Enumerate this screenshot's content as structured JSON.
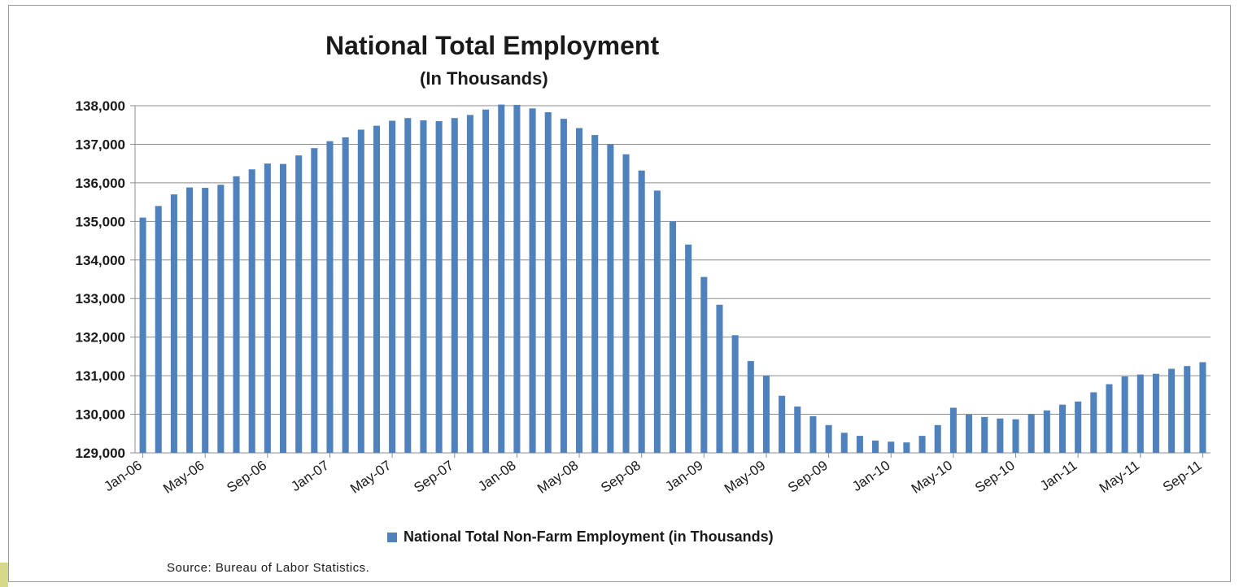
{
  "chart_data": {
    "type": "bar",
    "title": "National Total Employment",
    "subtitle": "(In Thousands)",
    "series": [
      {
        "name": "National Total Non-Farm Employment (in Thousands)",
        "color": "#4f81bd",
        "values": [
          135100,
          135400,
          135700,
          135880,
          135870,
          135950,
          136170,
          136350,
          136500,
          136490,
          136710,
          136900,
          137080,
          137180,
          137380,
          137480,
          137610,
          137680,
          137620,
          137600,
          137680,
          137760,
          137900,
          138030,
          138020,
          137930,
          137830,
          137660,
          137420,
          137240,
          137000,
          136740,
          136320,
          135800,
          135000,
          134400,
          133560,
          132840,
          132050,
          131380,
          131000,
          130480,
          130200,
          129950,
          129720,
          129520,
          129440,
          129320,
          129290,
          129270,
          129440,
          129720,
          130170,
          129990,
          129930,
          129890,
          129870,
          130000,
          130100,
          130250,
          130330,
          130570,
          130780,
          130980,
          131030,
          131050,
          131180,
          131250,
          131350
        ]
      }
    ],
    "x_tick_labels": [
      "Jan-06",
      "May-06",
      "Sep-06",
      "Jan-07",
      "May-07",
      "Sep-07",
      "Jan-08",
      "May-08",
      "Sep-08",
      "Jan-09",
      "May-09",
      "Sep-09",
      "Jan-10",
      "May-10",
      "Sep-10",
      "Jan-11",
      "May-11",
      "Sep-11"
    ],
    "y_tick_labels": [
      "129,000",
      "130,000",
      "131,000",
      "132,000",
      "133,000",
      "134,000",
      "135,000",
      "136,000",
      "137,000",
      "138,000"
    ],
    "ylim": [
      129000,
      138000
    ],
    "grid": true,
    "legend_position": "bottom"
  },
  "source": "Source: Bureau of Labor Statistics."
}
